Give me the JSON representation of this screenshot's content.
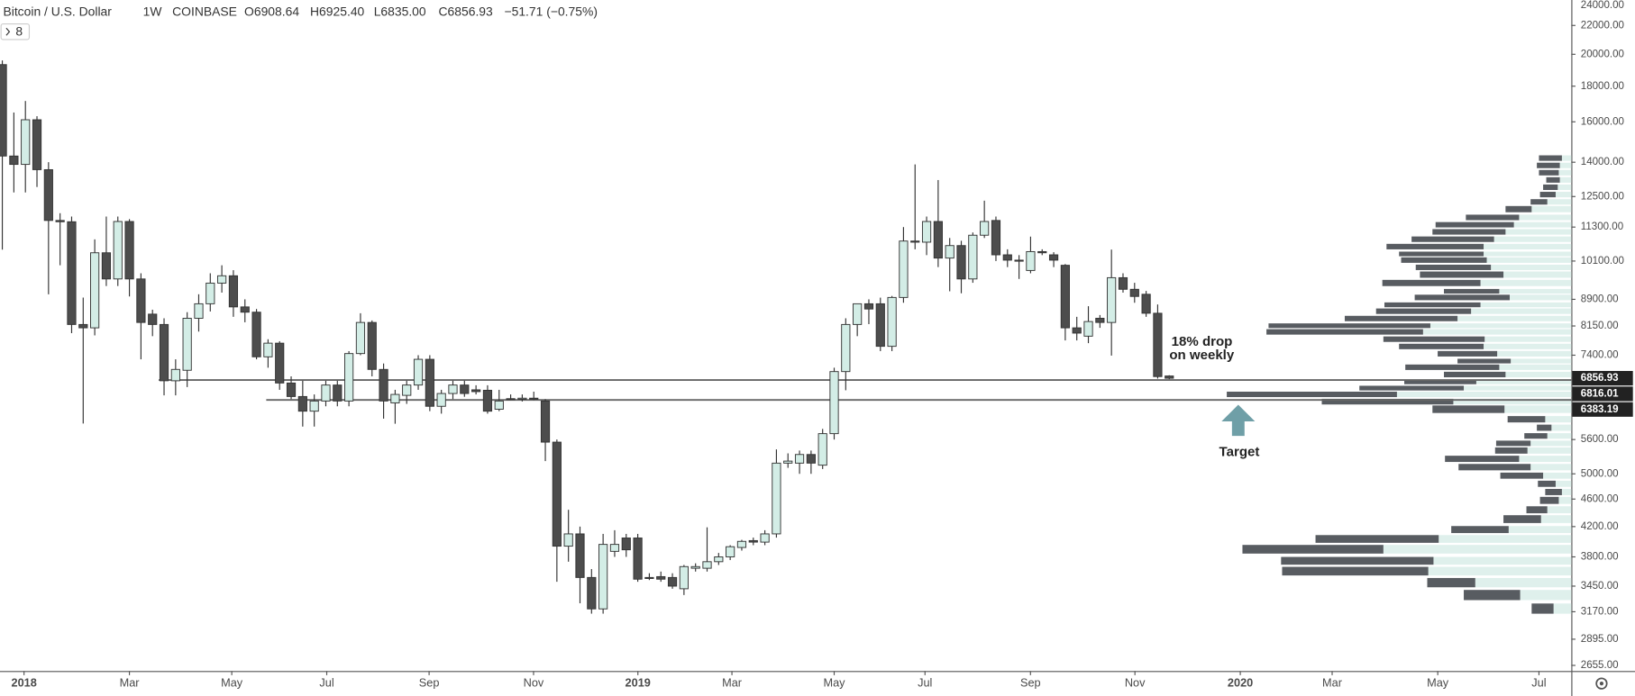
{
  "header": {
    "symbol": "Bitcoin / U.S. Dollar",
    "interval": "1W",
    "exchange": "COINBASE",
    "open": "O6908.64",
    "high": "H6925.40",
    "low": "L6835.00",
    "close": "C6856.93",
    "change": "−51.71 (−0.75%)",
    "indicators": "8"
  },
  "chart_data": {
    "type": "candlestick",
    "log_scale": true,
    "ylim": [
      2606,
      23930
    ],
    "xlim": [
      -0.2,
      135.8
    ],
    "yticks": [
      {
        "value": 2655,
        "label": "2655.00"
      },
      {
        "value": 2895,
        "label": "2895.00"
      },
      {
        "value": 3170,
        "label": "3170.00"
      },
      {
        "value": 3450,
        "label": "3450.00"
      },
      {
        "value": 3800,
        "label": "3800.00"
      },
      {
        "value": 4200,
        "label": "4200.00"
      },
      {
        "value": 4600,
        "label": "4600.00"
      },
      {
        "value": 5000,
        "label": "5000.00"
      },
      {
        "value": 5600,
        "label": "5600.00"
      },
      {
        "value": 7400,
        "label": "7400.00"
      },
      {
        "value": 8150,
        "label": "8150.00"
      },
      {
        "value": 8900,
        "label": "8900.00"
      },
      {
        "value": 10100,
        "label": "10100.00"
      },
      {
        "value": 11300,
        "label": "11300.00"
      },
      {
        "value": 12500,
        "label": "12500.00"
      },
      {
        "value": 14000,
        "label": "14000.00"
      },
      {
        "value": 16000,
        "label": "16000.00"
      },
      {
        "value": 18000,
        "label": "18000.00"
      },
      {
        "value": 20000,
        "label": "20000.00"
      },
      {
        "value": 22000,
        "label": "22000.00"
      },
      {
        "value": 24000,
        "label": "24000.00"
      }
    ],
    "xticks": [
      {
        "value": 1.88,
        "label": "2018"
      },
      {
        "value": 11.0,
        "label": "Mar"
      },
      {
        "value": 19.86,
        "label": "May"
      },
      {
        "value": 28.08,
        "label": "Jul"
      },
      {
        "value": 36.94,
        "label": "Sep"
      },
      {
        "value": 45.98,
        "label": "Nov"
      },
      {
        "value": 55.01,
        "label": "2019"
      },
      {
        "value": 63.15,
        "label": "Mar"
      },
      {
        "value": 72.0,
        "label": "May"
      },
      {
        "value": 79.86,
        "label": "Jul"
      },
      {
        "value": 88.99,
        "label": "Sep"
      },
      {
        "value": 98.03,
        "label": "Nov"
      },
      {
        "value": 107.15,
        "label": "2020"
      },
      {
        "value": 115.1,
        "label": "Mar"
      },
      {
        "value": 124.24,
        "label": "May"
      },
      {
        "value": 133.0,
        "label": "Jul"
      }
    ],
    "up_color": "#d3ede6",
    "down_color": "#4d4d4d",
    "ohlc": [
      [
        19330,
        19600,
        10490,
        14290
      ],
      [
        14290,
        16500,
        12670,
        13900
      ],
      [
        13900,
        17140,
        12670,
        16110
      ],
      [
        16110,
        16300,
        12900,
        13660
      ],
      [
        13660,
        14000,
        9050,
        11550
      ],
      [
        11550,
        11830,
        9960,
        11500
      ],
      [
        11500,
        11700,
        7960,
        8190
      ],
      [
        8190,
        8950,
        5905,
        8100
      ],
      [
        8100,
        10850,
        7900,
        10380
      ],
      [
        10380,
        11700,
        9300,
        9520
      ],
      [
        9520,
        11700,
        9300,
        11510
      ],
      [
        11510,
        11600,
        8985,
        9520
      ],
      [
        9520,
        9700,
        7300,
        8245
      ],
      [
        8475,
        8600,
        7880,
        8190
      ],
      [
        8190,
        8360,
        6480,
        6800
      ],
      [
        6800,
        7300,
        6480,
        7060
      ],
      [
        7040,
        8530,
        6660,
        8360
      ],
      [
        8360,
        9050,
        8000,
        8770
      ],
      [
        8770,
        9700,
        8550,
        9390
      ],
      [
        9390,
        9960,
        9100,
        9620
      ],
      [
        9620,
        9800,
        8400,
        8680
      ],
      [
        8680,
        8900,
        8250,
        8530
      ],
      [
        8530,
        8620,
        7300,
        7360
      ],
      [
        7360,
        7800,
        7100,
        7700
      ],
      [
        7700,
        7750,
        6600,
        6750
      ],
      [
        6750,
        6900,
        6400,
        6455
      ],
      [
        6455,
        6800,
        5845,
        6150
      ],
      [
        6150,
        6500,
        5845,
        6360
      ],
      [
        6360,
        6800,
        6250,
        6705
      ],
      [
        6705,
        6800,
        6250,
        6360
      ],
      [
        6360,
        7500,
        6250,
        7440
      ],
      [
        7440,
        8500,
        7400,
        8245
      ],
      [
        8245,
        8300,
        6900,
        7060
      ],
      [
        7060,
        7200,
        6000,
        6360
      ],
      [
        6320,
        6600,
        5900,
        6500
      ],
      [
        6480,
        6800,
        6300,
        6705
      ],
      [
        6705,
        7400,
        6600,
        7300
      ],
      [
        7300,
        7400,
        6150,
        6250
      ],
      [
        6250,
        6600,
        6100,
        6520
      ],
      [
        6520,
        6800,
        6400,
        6705
      ],
      [
        6705,
        6800,
        6450,
        6520
      ],
      [
        6600,
        6700,
        6500,
        6560
      ],
      [
        6590,
        6700,
        6100,
        6150
      ],
      [
        6190,
        6600,
        6150,
        6360
      ],
      [
        6410,
        6500,
        6380,
        6400
      ],
      [
        6400,
        6500,
        6350,
        6420
      ],
      [
        6420,
        6560,
        6380,
        6400
      ],
      [
        6360,
        6400,
        5215,
        5552
      ],
      [
        5552,
        5600,
        3500,
        3937
      ],
      [
        3937,
        4440,
        3740,
        4100
      ],
      [
        4100,
        4200,
        3260,
        3550
      ],
      [
        3550,
        3650,
        3150,
        3200
      ],
      [
        3200,
        4100,
        3150,
        3960
      ],
      [
        3870,
        4150,
        3800,
        3960
      ],
      [
        4045,
        4100,
        3800,
        3890
      ],
      [
        4045,
        4100,
        3500,
        3530
      ],
      [
        3550,
        3600,
        3520,
        3540
      ],
      [
        3560,
        3620,
        3500,
        3530
      ],
      [
        3550,
        3600,
        3420,
        3450
      ],
      [
        3420,
        3700,
        3350,
        3680
      ],
      [
        3660,
        3720,
        3620,
        3680
      ],
      [
        3660,
        4190,
        3620,
        3740
      ],
      [
        3740,
        3850,
        3700,
        3800
      ],
      [
        3800,
        3950,
        3760,
        3930
      ],
      [
        3920,
        4020,
        3880,
        4000
      ],
      [
        4010,
        4050,
        3950,
        3990
      ],
      [
        3990,
        4150,
        3950,
        4100
      ],
      [
        4100,
        5420,
        4050,
        5180
      ],
      [
        5180,
        5350,
        5100,
        5215
      ],
      [
        5180,
        5400,
        5000,
        5330
      ],
      [
        5330,
        5400,
        5000,
        5180
      ],
      [
        5145,
        5800,
        5080,
        5710
      ],
      [
        5710,
        7100,
        5600,
        7010
      ],
      [
        7010,
        8360,
        6590,
        8190
      ],
      [
        8190,
        8770,
        7880,
        8770
      ],
      [
        8770,
        8900,
        8200,
        8620
      ],
      [
        8770,
        8950,
        7500,
        7620
      ],
      [
        7620,
        9000,
        7500,
        8955
      ],
      [
        8955,
        11300,
        8800,
        10790
      ],
      [
        10790,
        13900,
        10500,
        10750
      ],
      [
        10750,
        11700,
        10300,
        11510
      ],
      [
        11510,
        13200,
        9900,
        10200
      ],
      [
        10200,
        10900,
        9140,
        10630
      ],
      [
        10630,
        10800,
        9080,
        9520
      ],
      [
        9520,
        11100,
        9400,
        11000
      ],
      [
        11000,
        12330,
        10900,
        11510
      ],
      [
        11550,
        11700,
        10100,
        10310
      ],
      [
        10310,
        10500,
        9900,
        10130
      ],
      [
        10130,
        10300,
        9520,
        10100
      ],
      [
        9790,
        10950,
        9700,
        10420
      ],
      [
        10420,
        10500,
        10300,
        10380
      ],
      [
        10310,
        10400,
        9900,
        10130
      ],
      [
        9960,
        10000,
        7770,
        8100
      ],
      [
        8100,
        8400,
        7770,
        7960
      ],
      [
        7880,
        8700,
        7700,
        8270
      ],
      [
        8360,
        8450,
        8100,
        8245
      ],
      [
        8245,
        10490,
        7390,
        9560
      ],
      [
        9560,
        9700,
        9100,
        9200
      ],
      [
        9200,
        9400,
        8800,
        8985
      ],
      [
        9050,
        9150,
        8400,
        8500
      ],
      [
        8500,
        8750,
        6850,
        6895
      ],
      [
        6908.64,
        6925.4,
        6835,
        6856.93
      ]
    ],
    "horizontal_lines": [
      6816.01,
      6383.19
    ],
    "price_labels": [
      6856.93,
      6816.01,
      6383.19
    ],
    "annotations": {
      "drop_line1": "18% drop",
      "drop_line2": "on weekly",
      "target": "Target"
    },
    "volume_profile": {
      "xlim": [
        0,
        330
      ],
      "up_color": "#dff0ec",
      "down_color": "#585c61",
      "rows": [
        {
          "price": 3203,
          "up": 17,
          "down": 21
        },
        {
          "price": 3350,
          "up": 49,
          "down": 54
        },
        {
          "price": 3490,
          "up": 92,
          "down": 46
        },
        {
          "price": 3625,
          "up": 137,
          "down": 140
        },
        {
          "price": 3751,
          "up": 132,
          "down": 146
        },
        {
          "price": 3897,
          "up": 180,
          "down": 135
        },
        {
          "price": 4032,
          "up": 127,
          "down": 118
        },
        {
          "price": 4159,
          "up": 60,
          "down": 55
        },
        {
          "price": 4305,
          "up": 29,
          "down": 36
        },
        {
          "price": 4440,
          "up": 23,
          "down": 20
        },
        {
          "price": 4580,
          "up": 12,
          "down": 18
        },
        {
          "price": 4708,
          "up": 9,
          "down": 16
        },
        {
          "price": 4838,
          "up": 15,
          "down": 17
        },
        {
          "price": 4970,
          "up": 27,
          "down": 41
        },
        {
          "price": 5112,
          "up": 39,
          "down": 69
        },
        {
          "price": 5254,
          "up": 50,
          "down": 71
        },
        {
          "price": 5400,
          "up": 42,
          "down": 31
        },
        {
          "price": 5530,
          "up": 39,
          "down": 33
        },
        {
          "price": 5667,
          "up": 23,
          "down": 22
        },
        {
          "price": 5823,
          "up": 19,
          "down": 14
        },
        {
          "price": 5988,
          "up": 25,
          "down": 36
        },
        {
          "price": 6190,
          "up": 64,
          "down": 69
        },
        {
          "price": 6347,
          "up": 113,
          "down": 126
        },
        {
          "price": 6501,
          "up": 167,
          "down": 163
        },
        {
          "price": 6637,
          "up": 103,
          "down": 100
        },
        {
          "price": 6775,
          "up": 91,
          "down": 69
        },
        {
          "price": 6942,
          "up": 63,
          "down": 59
        },
        {
          "price": 7111,
          "up": 69,
          "down": 90
        },
        {
          "price": 7257,
          "up": 58,
          "down": 51
        },
        {
          "price": 7435,
          "up": 71,
          "down": 57
        },
        {
          "price": 7616,
          "up": 84,
          "down": 81
        },
        {
          "price": 7802,
          "up": 83,
          "down": 97
        },
        {
          "price": 7992,
          "up": 142,
          "down": 150
        },
        {
          "price": 8157,
          "up": 135,
          "down": 155
        },
        {
          "price": 8353,
          "up": 109,
          "down": 108
        },
        {
          "price": 8557,
          "up": 96,
          "down": 91
        },
        {
          "price": 8740,
          "up": 87,
          "down": 92
        },
        {
          "price": 8955,
          "up": 59,
          "down": 91
        },
        {
          "price": 9140,
          "up": 69,
          "down": 53
        },
        {
          "price": 9394,
          "up": 87,
          "down": 94
        },
        {
          "price": 9657,
          "up": 65,
          "down": 80
        },
        {
          "price": 9891,
          "up": 77,
          "down": 72
        },
        {
          "price": 10132,
          "up": 81,
          "down": 82
        },
        {
          "price": 10340,
          "up": 84,
          "down": 81
        },
        {
          "price": 10594,
          "up": 84,
          "down": 93
        },
        {
          "price": 10855,
          "up": 74,
          "down": 79
        },
        {
          "price": 11122,
          "up": 63,
          "down": 70
        },
        {
          "price": 11387,
          "up": 55,
          "down": 75
        },
        {
          "price": 11666,
          "up": 50,
          "down": 51
        },
        {
          "price": 11990,
          "up": 38,
          "down": 25
        },
        {
          "price": 12281,
          "up": 23,
          "down": 16
        },
        {
          "price": 12582,
          "up": 15,
          "down": 15
        },
        {
          "price": 12890,
          "up": 13,
          "down": 14
        },
        {
          "price": 13204,
          "up": 11,
          "down": 13
        },
        {
          "price": 13524,
          "up": 12,
          "down": 19
        },
        {
          "price": 13853,
          "up": 11,
          "down": 22
        },
        {
          "price": 14193,
          "up": 9,
          "down": 22
        }
      ]
    }
  }
}
